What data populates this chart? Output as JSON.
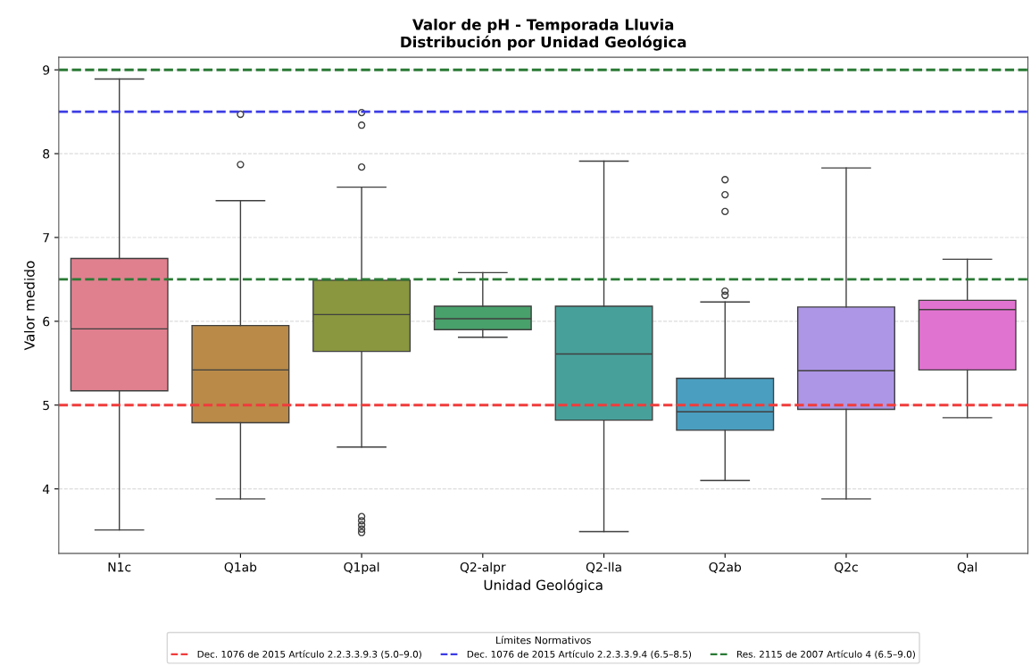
{
  "chart_data": {
    "type": "box",
    "title": "Valor de pH - Temporada Lluvia\nDistribución por Unidad Geológica",
    "xlabel": "Unidad Geológica",
    "ylabel": "Valor medido",
    "categories": [
      "N1c",
      "Q1ab",
      "Q1pal",
      "Q2-alpr",
      "Q2-lla",
      "Q2ab",
      "Q2c",
      "Qal"
    ],
    "colors": [
      "#e0808f",
      "#b98a48",
      "#8a973f",
      "#48a16b",
      "#48a09a",
      "#4a9ec0",
      "#ad96e6",
      "#e173d0"
    ],
    "boxes": [
      {
        "low": 3.51,
        "q1": 5.17,
        "median": 5.91,
        "q3": 6.75,
        "high": 8.89
      },
      {
        "low": 3.88,
        "q1": 4.79,
        "median": 5.42,
        "q3": 5.95,
        "high": 7.44,
        "outliers": [
          8.47,
          7.87
        ]
      },
      {
        "low": 4.5,
        "q1": 5.64,
        "median": 6.08,
        "q3": 6.49,
        "high": 7.6,
        "outliers": [
          8.49,
          8.34,
          7.84,
          3.67,
          3.62,
          3.57,
          3.52,
          3.48
        ]
      },
      {
        "low": 5.81,
        "q1": 5.9,
        "median": 6.03,
        "q3": 6.18,
        "high": 6.58
      },
      {
        "low": 3.49,
        "q1": 4.82,
        "median": 5.61,
        "q3": 6.18,
        "high": 7.91
      },
      {
        "low": 4.1,
        "q1": 4.7,
        "median": 4.92,
        "q3": 5.32,
        "high": 6.23,
        "outliers": [
          7.69,
          7.51,
          7.31,
          6.36,
          6.31
        ]
      },
      {
        "low": 3.88,
        "q1": 4.95,
        "median": 5.41,
        "q3": 6.17,
        "high": 7.83
      },
      {
        "low": 4.85,
        "q1": 5.42,
        "median": 6.14,
        "q3": 6.25,
        "high": 6.74
      }
    ],
    "ylim": [
      3.23,
      9.15
    ],
    "yticks": [
      4,
      5,
      6,
      7,
      8,
      9
    ],
    "grid": "y",
    "ref_lines": [
      {
        "axis": "y",
        "value": 5.0,
        "label": "Dec. 1076 de 2015 Artículo 2.2.3.3.9.3 (5.0–9.0)",
        "color": "#f03c3c",
        "line_style": "dashed"
      },
      {
        "axis": "y",
        "value": 8.5,
        "label": "Dec. 1076 de 2015 Artículo 2.2.3.3.9.4 (6.5–8.5)",
        "color": "#3c3ce6",
        "line_style": "dashed"
      },
      {
        "axis": "y",
        "value": 6.5,
        "label": "Res. 2115 de 2007 Artículo 4 (6.5–9.0)",
        "color": "#2a7a35",
        "line_style": "dashed"
      },
      {
        "axis": "y",
        "value": 9.0,
        "color": "#2a7a35",
        "line_style": "dashed"
      }
    ],
    "legend": "bottom",
    "legend_title": "Límites Normativos"
  }
}
